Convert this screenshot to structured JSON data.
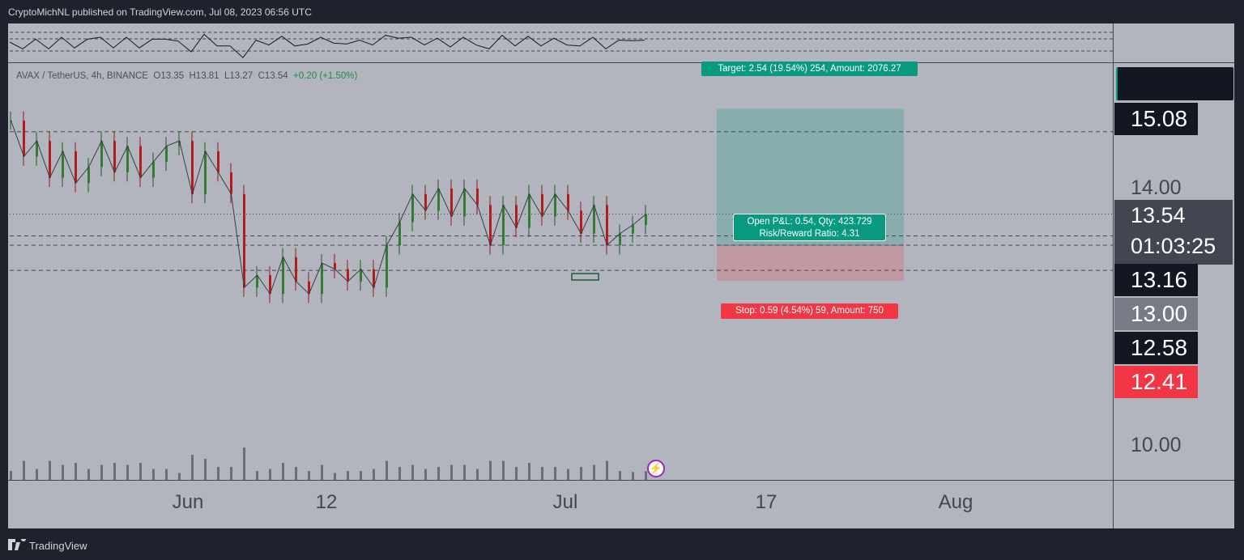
{
  "header": {
    "publisher": "CryptoMichNL published on TradingView.com, Jul 08, 2023 06:56 UTC"
  },
  "footer": {
    "brand": "TradingView"
  },
  "symbol": {
    "name": "AVAX / TetherUS, 4h, BINANCE",
    "open": "O13.35",
    "high": "H13.81",
    "low": "L13.27",
    "close": "C13.54",
    "change": "+0.20 (+1.50%)"
  },
  "position": {
    "target_label": "Target: 2.54 (19.54%) 254, Amount: 2076.27",
    "stop_label": "Stop: 0.59 (4.54%) 59, Amount: 750",
    "pnl_line1": "Open P&L: 0.54, Qty: 423.729",
    "pnl_line2": "Risk/Reward Ratio: 4.31",
    "entry": 13.0,
    "target": 15.54,
    "stop": 12.41
  },
  "price_labels": {
    "p1508": "15.08",
    "current": "13.54",
    "countdown": "01:03:25",
    "p1316": "13.16",
    "p1300": "13.00",
    "p1258": "12.58",
    "p1241": "12.41"
  },
  "colors": {
    "up": "#26a69a",
    "down": "#ef5350",
    "target_zone": "#089981",
    "stop_zone": "#f23645"
  },
  "chart_data": {
    "type": "line",
    "title": "AVAX / TetherUS, 4h, BINANCE",
    "x_ticks": [
      "Jun",
      "12",
      "Jul",
      "17",
      "Aug"
    ],
    "y_ticks": [
      "14.00",
      "10.00"
    ],
    "y_scale": "log",
    "series": [
      {
        "x": [
          0,
          4,
          8,
          12,
          16,
          20,
          24,
          28,
          32,
          36,
          40,
          44,
          48,
          52,
          56,
          60,
          64,
          68,
          72,
          76,
          80,
          84,
          88,
          92,
          96,
          100,
          104,
          108,
          112,
          116,
          120,
          124,
          128,
          132,
          136,
          140,
          144,
          148,
          152,
          156,
          160,
          164,
          168,
          172,
          176,
          180,
          184,
          188,
          192,
          196
        ],
        "values": [
          15.3,
          14.6,
          14.9,
          14.2,
          14.7,
          14.1,
          14.4,
          14.9,
          14.3,
          14.8,
          14.2,
          14.5,
          14.8,
          14.9,
          13.9,
          14.7,
          14.3,
          13.9,
          12.3,
          12.5,
          12.2,
          12.8,
          12.4,
          12.2,
          12.7,
          12.6,
          12.4,
          12.6,
          12.3,
          13.0,
          13.4,
          13.9,
          13.6,
          14.0,
          13.5,
          14.0,
          13.7,
          13.0,
          13.7,
          13.3,
          13.9,
          13.5,
          13.9,
          13.6,
          13.2,
          13.7,
          13.0,
          13.2,
          13.35,
          13.54
        ]
      }
    ],
    "horizontal_levels": [
      15.08,
      13.16,
      13.0,
      12.58
    ],
    "grid": false
  }
}
